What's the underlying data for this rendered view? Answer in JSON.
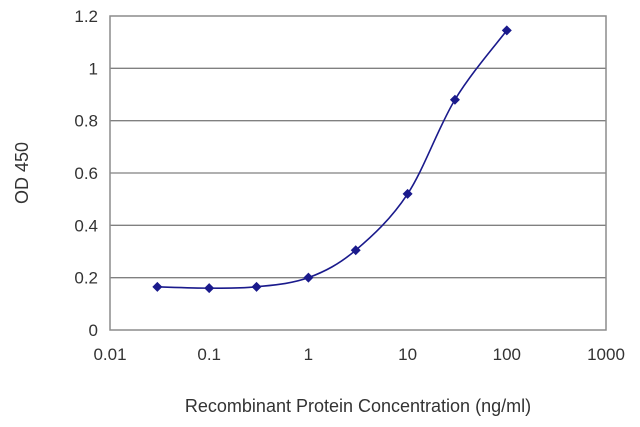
{
  "chart_data": {
    "type": "line",
    "xscale": "log",
    "xlabel": "Recombinant Protein Concentration (ng/ml)",
    "ylabel": "OD 450",
    "xlim": [
      0.01,
      1000
    ],
    "ylim": [
      0,
      1.2
    ],
    "x_ticks": [
      0.01,
      0.1,
      1,
      10,
      100,
      1000
    ],
    "x_tick_labels": [
      "0.01",
      "0.1",
      "1",
      "10",
      "100",
      "1000"
    ],
    "y_ticks": [
      0,
      0.2,
      0.4,
      0.6,
      0.8,
      1,
      1.2
    ],
    "y_tick_labels": [
      "0",
      "0.2",
      "0.4",
      "0.6",
      "0.8",
      "1",
      "1.2"
    ],
    "grid": "horizontal",
    "legend": "none",
    "series": [
      {
        "x": [
          0.03,
          0.1,
          0.3,
          1,
          3,
          10,
          30,
          100
        ],
        "y": [
          0.165,
          0.16,
          0.165,
          0.2,
          0.305,
          0.52,
          0.88,
          1.145
        ],
        "color": "#1a1a8c",
        "marker": "diamond",
        "line": "smooth"
      }
    ],
    "plot_background": "#ffffff",
    "grid_color": "#808080"
  }
}
